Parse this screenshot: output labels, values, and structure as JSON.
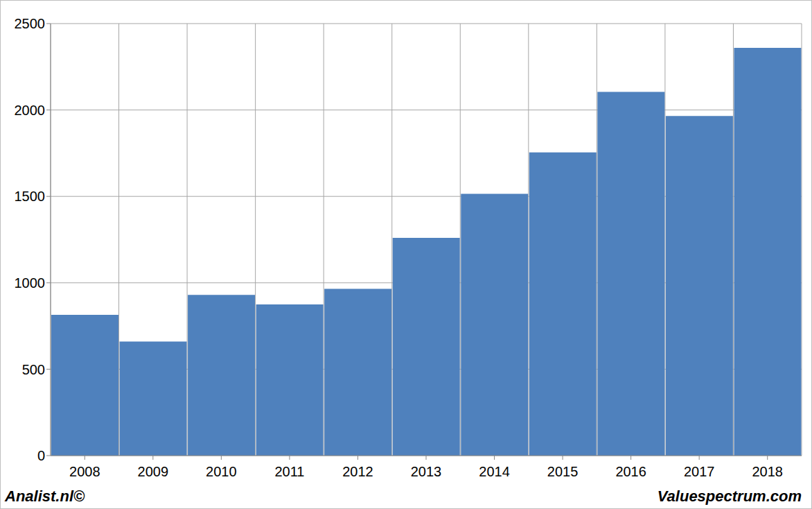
{
  "chart_data": {
    "type": "bar",
    "categories": [
      "2008",
      "2009",
      "2010",
      "2011",
      "2012",
      "2013",
      "2014",
      "2015",
      "2016",
      "2017",
      "2018"
    ],
    "values": [
      815,
      660,
      930,
      875,
      965,
      1260,
      1515,
      1755,
      2105,
      1965,
      2360
    ],
    "color": "#4f81bd",
    "ylim": [
      0,
      2500
    ],
    "yticks": [
      0,
      500,
      1000,
      1500,
      2000,
      2500
    ],
    "grid": true,
    "annotations": [
      "Analist.nl©",
      "Valuespectrum.com"
    ]
  }
}
